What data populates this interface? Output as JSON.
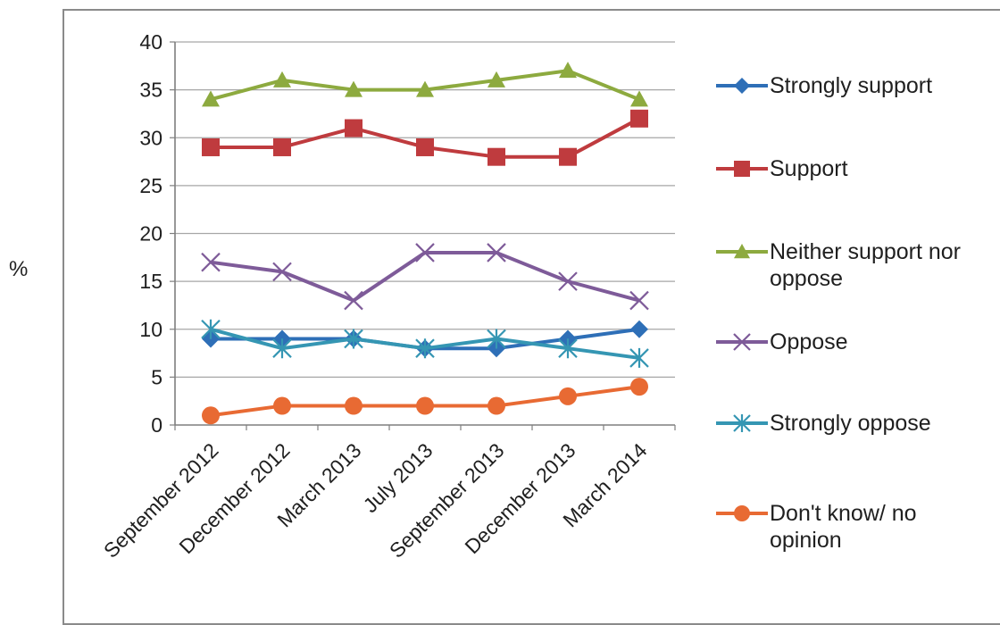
{
  "chart_data": {
    "type": "line",
    "title": "",
    "xlabel": "",
    "ylabel": "%",
    "ylim": [
      0,
      40
    ],
    "ytick_step": 5,
    "grid": "horizontal",
    "legend_position": "right",
    "categories": [
      "September 2012",
      "December 2012",
      "March 2013",
      "July 2013",
      "September 2013",
      "December 2013",
      "March 2014"
    ],
    "series": [
      {
        "name": "Strongly support",
        "color": "#2e6fb7",
        "marker": "diamond",
        "values": [
          9,
          9,
          9,
          8,
          8,
          9,
          10
        ]
      },
      {
        "name": "Support",
        "color": "#bf3b3e",
        "marker": "square",
        "values": [
          29,
          29,
          31,
          29,
          28,
          28,
          32
        ]
      },
      {
        "name": "Neither support nor oppose",
        "color": "#8daa3f",
        "marker": "triangle",
        "values": [
          34,
          36,
          35,
          35,
          36,
          37,
          34
        ]
      },
      {
        "name": "Oppose",
        "color": "#7e5b99",
        "marker": "x",
        "values": [
          17,
          16,
          13,
          18,
          18,
          15,
          13
        ]
      },
      {
        "name": "Strongly oppose",
        "color": "#3596b3",
        "marker": "asterisk",
        "values": [
          10,
          8,
          9,
          8,
          9,
          8,
          7
        ]
      },
      {
        "name": "Don't know/ no opinion",
        "color": "#e86a33",
        "marker": "circle",
        "values": [
          1,
          2,
          2,
          2,
          2,
          3,
          4
        ]
      }
    ]
  }
}
